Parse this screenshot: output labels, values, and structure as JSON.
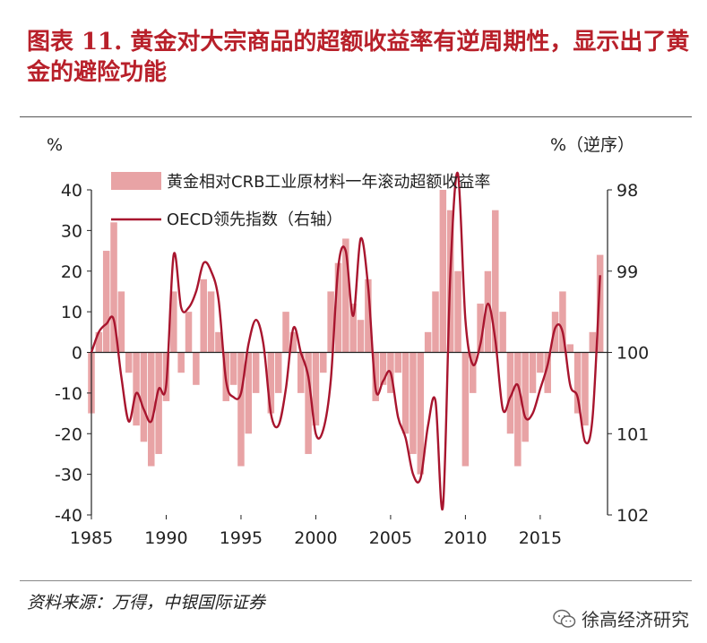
{
  "title": "图表 11. 黄金对大宗商品的超额收益率有逆周期性，显示出了黄金的避险功能",
  "source": "资料来源：万得，中银国际证券",
  "watermark": {
    "text": "徐高经济研究",
    "icon": "wechat-icon"
  },
  "colors": {
    "bars": "#e8a3a5",
    "line": "#a8152e",
    "title": "#b8202a"
  },
  "chart_data": {
    "type": "bar",
    "left_axis_unit": "%",
    "right_axis_unit": "%（逆序）",
    "ylim_left": [
      -40,
      40
    ],
    "yticks_left": [
      -40,
      -30,
      -20,
      -10,
      0,
      10,
      20,
      30,
      40
    ],
    "ylim_right": [
      102,
      98
    ],
    "yticks_right": [
      98,
      99,
      100,
      101,
      102
    ],
    "right_axis_inverted": true,
    "xlim": [
      1985,
      2019.5
    ],
    "xticks": [
      1985,
      1990,
      1995,
      2000,
      2005,
      2010,
      2015
    ],
    "legend": [
      "黄金相对CRB工业原材料一年滚动超额收益率",
      "OECD领先指数（右轴）"
    ],
    "bar_series": {
      "name": "黄金相对CRB工业原材料一年滚动超额收益率",
      "x": [
        1985.0,
        1985.5,
        1986.0,
        1986.5,
        1987.0,
        1987.5,
        1988.0,
        1988.5,
        1989.0,
        1989.5,
        1990.0,
        1990.5,
        1991.0,
        1991.5,
        1992.0,
        1992.5,
        1993.0,
        1993.5,
        1994.0,
        1994.5,
        1995.0,
        1995.5,
        1996.0,
        1996.5,
        1997.0,
        1997.5,
        1998.0,
        1998.5,
        1999.0,
        1999.5,
        2000.0,
        2000.5,
        2001.0,
        2001.5,
        2002.0,
        2002.5,
        2003.0,
        2003.5,
        2004.0,
        2004.5,
        2005.0,
        2005.5,
        2006.0,
        2006.5,
        2007.0,
        2007.5,
        2008.0,
        2008.5,
        2009.0,
        2009.5,
        2010.0,
        2010.5,
        2011.0,
        2011.5,
        2012.0,
        2012.5,
        2013.0,
        2013.5,
        2014.0,
        2014.5,
        2015.0,
        2015.5,
        2016.0,
        2016.5,
        2017.0,
        2017.5,
        2018.0,
        2018.5,
        2019.0
      ],
      "values": [
        -15,
        5,
        25,
        32,
        15,
        -5,
        -18,
        -22,
        -28,
        -25,
        -12,
        15,
        -5,
        10,
        -8,
        18,
        15,
        5,
        -12,
        -8,
        -28,
        -20,
        -10,
        0,
        -15,
        -10,
        10,
        5,
        -10,
        -25,
        -18,
        -5,
        15,
        22,
        28,
        12,
        8,
        18,
        -12,
        -8,
        -10,
        -5,
        -20,
        -25,
        -30,
        5,
        15,
        40,
        35,
        20,
        -28,
        -10,
        12,
        20,
        35,
        10,
        -20,
        -28,
        -22,
        -10,
        -5,
        -10,
        10,
        15,
        2,
        -15,
        -18,
        5,
        24
      ]
    },
    "line_series": {
      "name": "OECD领先指数（右轴）",
      "x": [
        1985.0,
        1985.5,
        1986.0,
        1986.5,
        1987.0,
        1987.5,
        1988.0,
        1988.5,
        1989.0,
        1989.5,
        1990.0,
        1990.5,
        1991.0,
        1991.5,
        1992.0,
        1992.5,
        1993.0,
        1993.5,
        1994.0,
        1994.5,
        1995.0,
        1995.5,
        1996.0,
        1996.5,
        1997.0,
        1997.5,
        1998.0,
        1998.5,
        1999.0,
        1999.5,
        2000.0,
        2000.5,
        2001.0,
        2001.5,
        2002.0,
        2002.5,
        2003.0,
        2003.5,
        2004.0,
        2004.5,
        2005.0,
        2005.5,
        2006.0,
        2006.5,
        2007.0,
        2007.5,
        2008.0,
        2008.5,
        2009.0,
        2009.5,
        2010.0,
        2010.5,
        2011.0,
        2011.5,
        2012.0,
        2012.5,
        2013.0,
        2013.5,
        2014.0,
        2014.5,
        2015.0,
        2015.5,
        2016.0,
        2016.5,
        2017.0,
        2017.5,
        2018.0,
        2018.5,
        2019.0
      ],
      "values": [
        100.0,
        99.75,
        99.65,
        99.6,
        100.3,
        100.85,
        100.5,
        100.7,
        100.85,
        100.45,
        100.4,
        98.8,
        99.45,
        99.45,
        99.25,
        98.9,
        99.0,
        99.35,
        100.35,
        100.55,
        100.5,
        99.9,
        99.6,
        99.9,
        100.75,
        100.9,
        100.45,
        99.7,
        100.0,
        100.3,
        101.0,
        100.95,
        100.35,
        98.95,
        98.75,
        99.55,
        98.6,
        99.2,
        100.45,
        100.35,
        100.25,
        100.8,
        101.05,
        101.5,
        101.55,
        100.9,
        100.6,
        101.9,
        99.0,
        97.8,
        99.6,
        100.15,
        99.9,
        99.4,
        99.85,
        100.7,
        100.55,
        100.4,
        100.8,
        100.75,
        100.45,
        100.15,
        99.7,
        99.75,
        100.4,
        100.55,
        101.1,
        100.8,
        99.05
      ]
    }
  }
}
